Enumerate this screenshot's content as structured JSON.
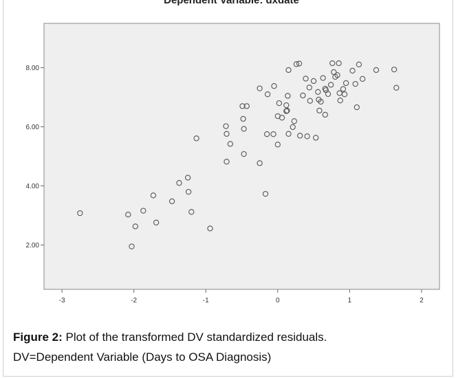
{
  "chart_data": {
    "type": "scatter",
    "title": "Dependent Variable: dxdate",
    "xlabel": "",
    "ylabel": "",
    "xlim": [
      -3.25,
      2.25
    ],
    "ylim": [
      0.5,
      9.5
    ],
    "x_ticks": [
      -3,
      -2,
      -1,
      0,
      1,
      2
    ],
    "x_tick_labels": [
      "-3",
      "-2",
      "-1",
      "0",
      "1",
      "2"
    ],
    "y_ticks": [
      2,
      4,
      6,
      8
    ],
    "y_tick_labels": [
      "2.00",
      "4.00",
      "6.00",
      "8.00"
    ],
    "grid": false,
    "plot_background": "#efefef",
    "marker_color": "#555555",
    "points": [
      [
        -2.75,
        3.08
      ],
      [
        -2.08,
        3.03
      ],
      [
        -2.03,
        1.95
      ],
      [
        -1.98,
        2.63
      ],
      [
        -1.87,
        3.16
      ],
      [
        -1.73,
        3.68
      ],
      [
        -1.69,
        2.76
      ],
      [
        -1.47,
        3.48
      ],
      [
        -1.37,
        4.1
      ],
      [
        -1.25,
        4.28
      ],
      [
        -1.24,
        3.8
      ],
      [
        -1.2,
        3.12
      ],
      [
        -1.13,
        5.61
      ],
      [
        -0.94,
        2.56
      ],
      [
        -0.72,
        6.02
      ],
      [
        -0.71,
        5.76
      ],
      [
        -0.71,
        4.82
      ],
      [
        -0.66,
        5.42
      ],
      [
        -0.49,
        6.7
      ],
      [
        -0.48,
        6.27
      ],
      [
        -0.47,
        5.93
      ],
      [
        -0.47,
        5.08
      ],
      [
        -0.43,
        6.7
      ],
      [
        -0.25,
        4.77
      ],
      [
        -0.25,
        7.3
      ],
      [
        -0.17,
        3.73
      ],
      [
        -0.15,
        5.75
      ],
      [
        -0.14,
        7.1
      ],
      [
        -0.06,
        5.75
      ],
      [
        -0.05,
        7.38
      ],
      [
        0.0,
        6.36
      ],
      [
        0.0,
        5.4
      ],
      [
        0.02,
        6.8
      ],
      [
        0.06,
        6.31
      ],
      [
        0.12,
        6.73
      ],
      [
        0.12,
        6.53
      ],
      [
        0.13,
        6.55
      ],
      [
        0.14,
        7.05
      ],
      [
        0.15,
        5.76
      ],
      [
        0.15,
        7.92
      ],
      [
        0.21,
        5.99
      ],
      [
        0.23,
        6.19
      ],
      [
        0.26,
        8.12
      ],
      [
        0.3,
        8.14
      ],
      [
        0.31,
        5.7
      ],
      [
        0.35,
        7.06
      ],
      [
        0.39,
        7.63
      ],
      [
        0.41,
        5.68
      ],
      [
        0.44,
        7.33
      ],
      [
        0.45,
        6.88
      ],
      [
        0.5,
        7.55
      ],
      [
        0.53,
        5.63
      ],
      [
        0.56,
        7.18
      ],
      [
        0.57,
        6.92
      ],
      [
        0.58,
        6.55
      ],
      [
        0.6,
        6.85
      ],
      [
        0.63,
        7.65
      ],
      [
        0.66,
        6.41
      ],
      [
        0.66,
        7.29
      ],
      [
        0.67,
        7.24
      ],
      [
        0.7,
        7.11
      ],
      [
        0.74,
        7.42
      ],
      [
        0.76,
        8.15
      ],
      [
        0.78,
        7.85
      ],
      [
        0.8,
        7.69
      ],
      [
        0.83,
        7.75
      ],
      [
        0.85,
        8.15
      ],
      [
        0.86,
        7.14
      ],
      [
        0.87,
        6.89
      ],
      [
        0.91,
        7.28
      ],
      [
        0.93,
        7.1
      ],
      [
        0.95,
        7.48
      ],
      [
        1.04,
        7.9
      ],
      [
        1.08,
        7.45
      ],
      [
        1.1,
        6.66
      ],
      [
        1.13,
        8.11
      ],
      [
        1.18,
        7.62
      ],
      [
        1.37,
        7.92
      ],
      [
        1.62,
        7.94
      ],
      [
        1.65,
        7.32
      ]
    ]
  },
  "caption": {
    "label": "Figure 2:",
    "text": " Plot of the transformed DV standardized residuals.",
    "line2": "DV=Dependent Variable (Days to OSA Diagnosis)"
  }
}
